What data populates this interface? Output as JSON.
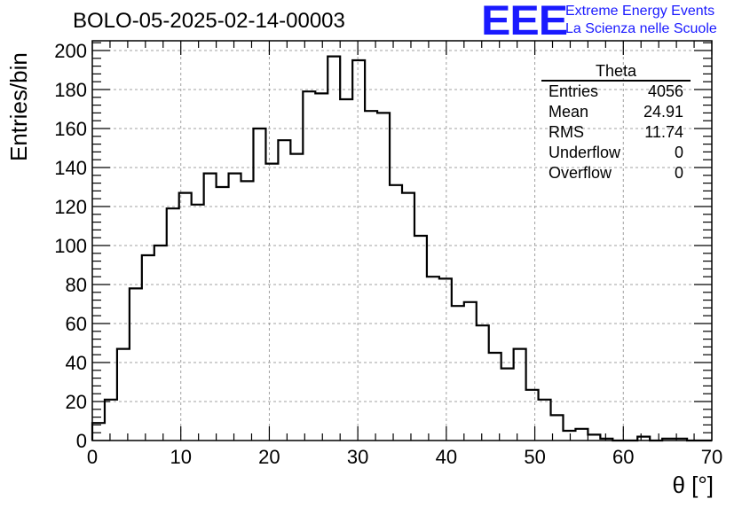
{
  "header": {
    "title": "BOLO-05-2025-02-14-00003",
    "logo_mark": "EEE",
    "logo_line1": "Extreme Energy Events",
    "logo_line2": "La Scienza nelle Scuole",
    "logo_color": "#1a1aff"
  },
  "stats_box": {
    "title": "Theta",
    "rows": [
      {
        "label": "Entries",
        "value": "4056"
      },
      {
        "label": "Mean",
        "value": "24.91"
      },
      {
        "label": "RMS",
        "value": "11.74"
      },
      {
        "label": "Underflow",
        "value": "0"
      },
      {
        "label": "Overflow",
        "value": "0"
      }
    ]
  },
  "chart_data": {
    "type": "histogram",
    "xlabel": "θ [°]",
    "ylabel": "Entries/bin",
    "xlim": [
      0,
      70
    ],
    "ylim": [
      0,
      205
    ],
    "bin_width": 1.4,
    "x_ticks": [
      0,
      10,
      20,
      30,
      40,
      50,
      60,
      70
    ],
    "y_ticks": [
      0,
      20,
      40,
      60,
      80,
      100,
      120,
      140,
      160,
      180,
      200
    ],
    "grid": true,
    "line_color": "#000000",
    "values": [
      9,
      21,
      47,
      78,
      95,
      100,
      119,
      127,
      121,
      137,
      130,
      137,
      133,
      160,
      142,
      154,
      147,
      179,
      178,
      197,
      175,
      195,
      169,
      168,
      131,
      127,
      105,
      84,
      83,
      69,
      71,
      59,
      45,
      37,
      47,
      26,
      21,
      13,
      5,
      6,
      3,
      1,
      0,
      0,
      2,
      0,
      1,
      1,
      0,
      0
    ]
  }
}
